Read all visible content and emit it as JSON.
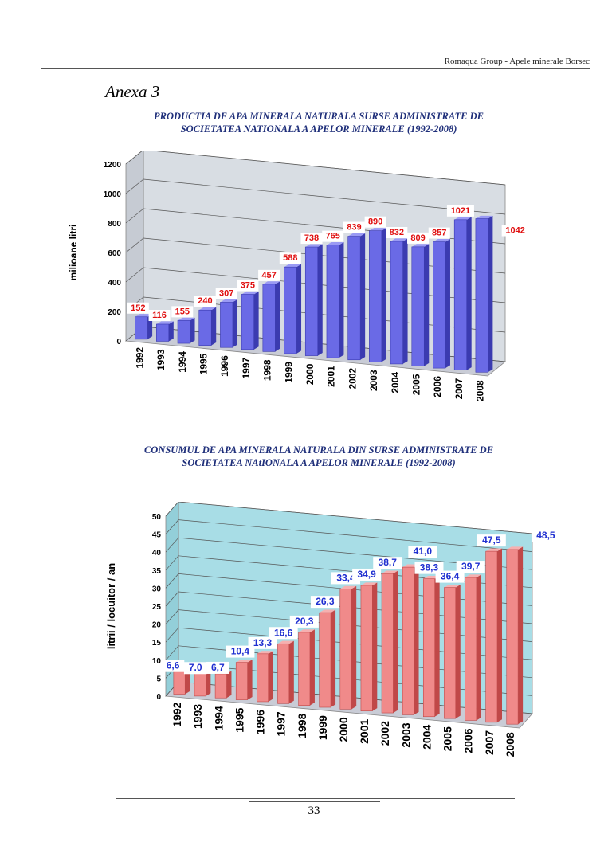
{
  "header": {
    "text": "Romaqua Group - Apele minerale Borsec"
  },
  "annex_title": "Anexa 3",
  "footer": {
    "page_number": "33"
  },
  "colors": {
    "bar1": "#6a6ae6",
    "bar1_dark": "#3b3bb0",
    "bar2": "#f08a8a",
    "bar2_dark": "#c04848",
    "label1": "#e01010",
    "label2": "#1f2fd0",
    "wall1": "#d8dde3",
    "wall2": "#a8dde6"
  },
  "chart_data": [
    {
      "type": "bar",
      "title_lines": [
        "PRODUCTIA DE APA MINERALA NATURALA SURSE ADMINISTRATE DE",
        "SOCIETATEA  NATIONALA A APELOR MINERALE (1992-2008)"
      ],
      "ylabel": "milioane litri",
      "ylim": [
        0,
        1200
      ],
      "yticks": [
        0,
        200,
        400,
        600,
        800,
        1000,
        1200
      ],
      "categories": [
        "1992",
        "1993",
        "1994",
        "1995",
        "1996",
        "1997",
        "1998",
        "1999",
        "2000",
        "2001",
        "2002",
        "2003",
        "2004",
        "2005",
        "2006",
        "2007",
        "2008"
      ],
      "values": [
        152,
        116,
        155,
        240,
        307,
        375,
        457,
        588,
        738,
        765,
        839,
        890,
        832,
        809,
        857,
        1021,
        1042
      ],
      "labels": [
        "152",
        "116",
        "155",
        "240",
        "307",
        "375",
        "457",
        "588",
        "738",
        "765",
        "839",
        "890",
        "832",
        "809",
        "857",
        "1021",
        "1042"
      ],
      "grid": true
    },
    {
      "type": "bar",
      "title_lines": [
        "CONSUMUL DE  APA MINERALA NATURALA DIN SURSE ADMINISTRATE DE",
        "SOCIETATEA  NAtIONALA A APELOR MINERALE (1992-2008)"
      ],
      "ylabel": "litrii / locuitor / an",
      "ylim": [
        0,
        50
      ],
      "yticks": [
        0,
        5,
        10,
        15,
        20,
        25,
        30,
        35,
        40,
        45,
        50
      ],
      "categories": [
        "1992",
        "1993",
        "1994",
        "1995",
        "1996",
        "1997",
        "1998",
        "1999",
        "2000",
        "2001",
        "2002",
        "2003",
        "2004",
        "2005",
        "2006",
        "2007",
        "2008"
      ],
      "values": [
        6.6,
        7.0,
        6.7,
        10.4,
        13.3,
        16.6,
        20.3,
        26.3,
        33.4,
        34.9,
        38.7,
        41.0,
        38.3,
        36.4,
        39.7,
        47.5,
        48.5
      ],
      "labels": [
        "6,6",
        "7.0",
        "6,7",
        "10,4",
        "13,3",
        "16,6",
        "20,3",
        "26,3",
        "33,4",
        "34,9",
        "38,7",
        "41,0",
        "38,3",
        "36,4",
        "39,7",
        "47,5",
        "48,5"
      ],
      "grid": true
    }
  ]
}
